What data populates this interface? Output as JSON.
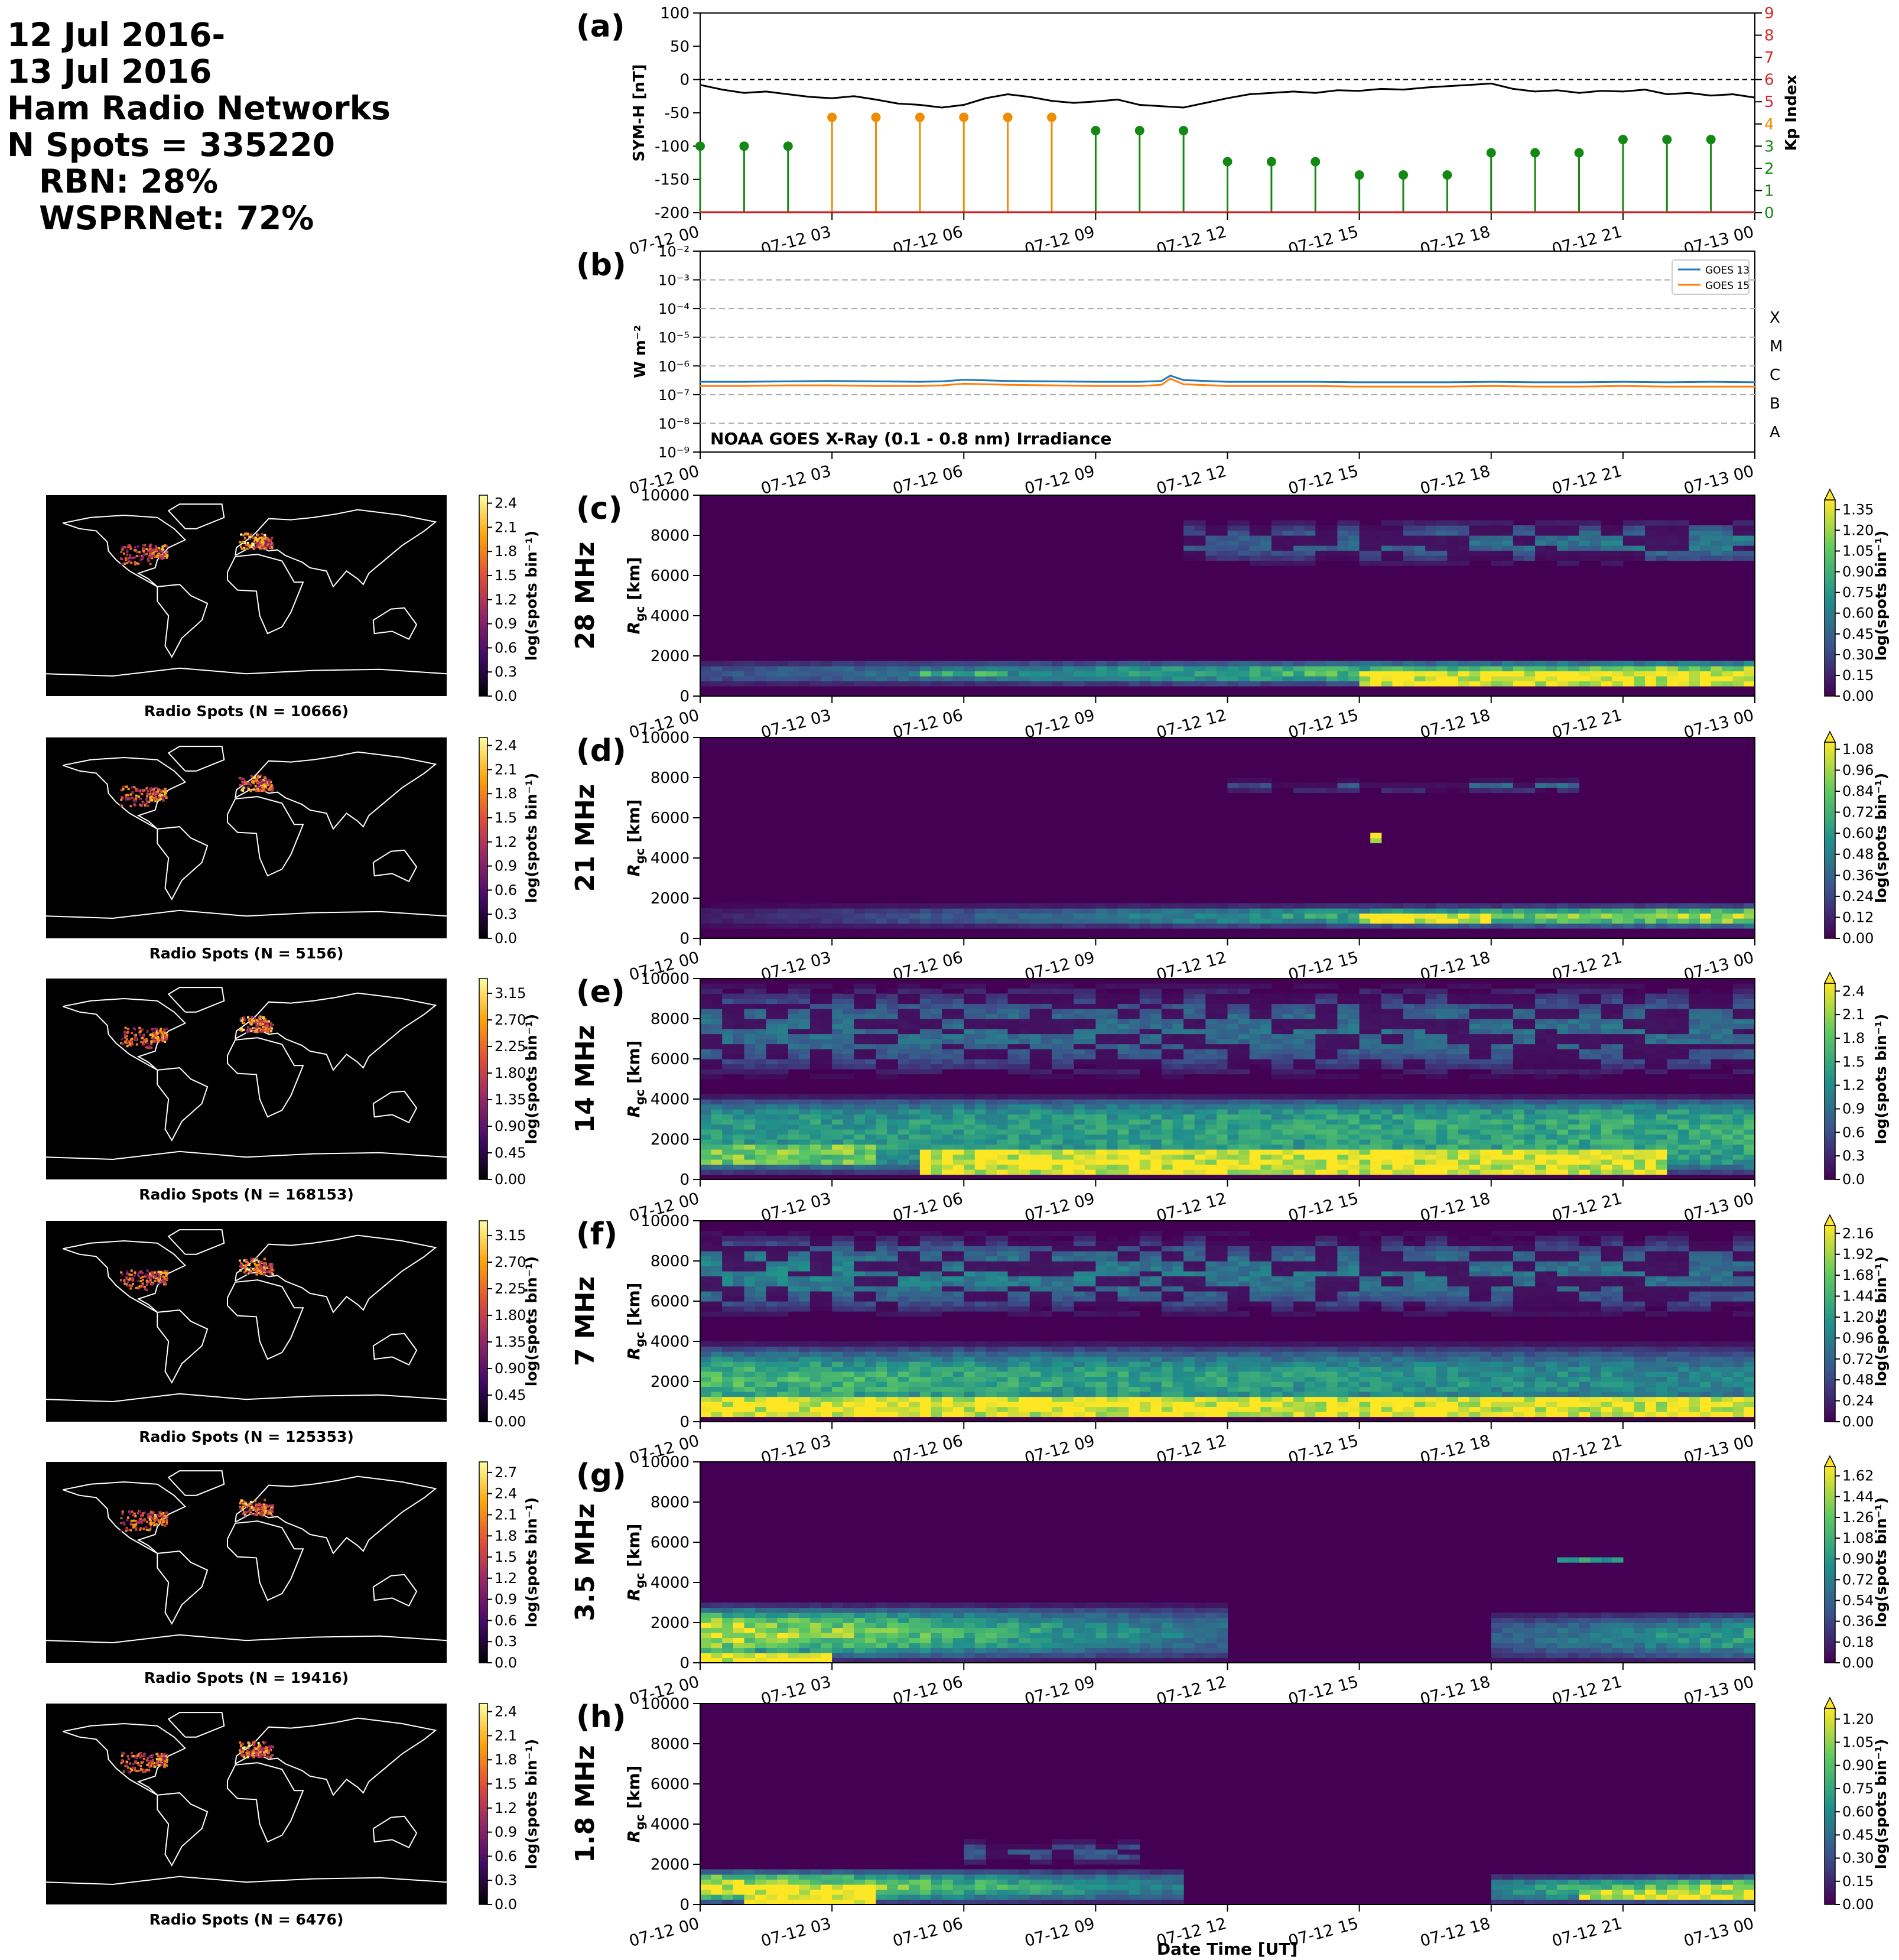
{
  "header": {
    "date_line1": "12 Jul 2016-",
    "date_line2": "13 Jul 2016",
    "network_title": "Ham Radio Networks",
    "n_spots": "N Spots = 335220",
    "rbn": "RBN: 28%",
    "wsprnet": "WSPRNet: 72%"
  },
  "colors": {
    "symh": "#000000",
    "kp_green": "#138813",
    "kp_orange": "#f08c00",
    "kp_red": "#d62728",
    "goes13": "#1f77b4",
    "goes15": "#ff7f0e",
    "viridis": [
      "#440154",
      "#3b528b",
      "#21918c",
      "#5ec962",
      "#fde725"
    ],
    "inferno": [
      "#000004",
      "#420a68",
      "#932667",
      "#dd513a",
      "#fca50a",
      "#fcffa4"
    ]
  },
  "xaxis": {
    "tick_labels": [
      "07-12 00",
      "07-12 03",
      "07-12 06",
      "07-12 09",
      "07-12 12",
      "07-12 15",
      "07-12 18",
      "07-12 21",
      "07-13 00"
    ],
    "xlabel": "Date Time [UT]"
  },
  "chart_data": [
    {
      "panel": "(a)",
      "type": "line",
      "ylabel": "SYM-H [nT]",
      "ylim": [
        -200,
        100
      ],
      "yticks": [
        "100",
        "50",
        "0",
        "-50",
        "-100",
        "-150",
        "-200"
      ],
      "zero_line": "dashed",
      "symh_series": {
        "x_hours": [
          0,
          0.5,
          1,
          1.5,
          2,
          2.5,
          3,
          3.5,
          4,
          4.5,
          5,
          5.5,
          6,
          6.5,
          7,
          7.5,
          8,
          8.5,
          9,
          9.5,
          10,
          10.5,
          11,
          11.5,
          12,
          12.5,
          13,
          13.5,
          14,
          14.5,
          15,
          15.5,
          16,
          16.5,
          17,
          17.5,
          18,
          18.5,
          19,
          19.5,
          20,
          20.5,
          21,
          21.5,
          22,
          22.5,
          23,
          23.5,
          24
        ],
        "values": [
          -8,
          -15,
          -20,
          -18,
          -22,
          -26,
          -28,
          -25,
          -30,
          -36,
          -38,
          -42,
          -38,
          -28,
          -22,
          -26,
          -32,
          -35,
          -33,
          -30,
          -38,
          -40,
          -42,
          -35,
          -28,
          -22,
          -20,
          -18,
          -20,
          -16,
          -17,
          -14,
          -15,
          -12,
          -10,
          -8,
          -6,
          -14,
          -18,
          -16,
          -20,
          -17,
          -18,
          -15,
          -22,
          -20,
          -24,
          -22,
          -27
        ]
      },
      "kp_axis": {
        "ylabel": "Kp Index",
        "ylim": [
          0,
          9
        ],
        "tick_labels": [
          "0",
          "1",
          "2",
          "3",
          "4",
          "5",
          "6",
          "7",
          "8",
          "9"
        ]
      },
      "kp_series": {
        "x_hours": [
          0,
          1,
          2,
          3,
          4,
          5,
          6,
          7,
          8,
          9,
          10,
          11,
          12,
          13,
          14,
          15,
          16,
          17,
          18,
          19,
          20,
          21,
          22,
          23
        ],
        "values": [
          3.0,
          3.0,
          3.0,
          4.3,
          4.3,
          4.3,
          4.3,
          4.3,
          4.3,
          3.7,
          3.7,
          3.7,
          2.3,
          2.3,
          2.3,
          1.7,
          1.7,
          1.7,
          2.7,
          2.7,
          2.7,
          3.3,
          3.3,
          3.3
        ]
      }
    },
    {
      "panel": "(b)",
      "type": "line",
      "ylabel": "W m⁻²",
      "yscale": "log",
      "ylim": [
        1e-09,
        0.01
      ],
      "ytick_labels": [
        "10⁻²",
        "10⁻³",
        "10⁻⁴",
        "10⁻⁵",
        "10⁻⁶",
        "10⁻⁷",
        "10⁻⁸",
        "10⁻⁹"
      ],
      "flare_classes": [
        "X",
        "M",
        "C",
        "B",
        "A"
      ],
      "annotation": "NOAA GOES X-Ray (0.1 - 0.8 nm) Irradiance",
      "series": [
        {
          "name": "GOES 13",
          "x_hours": [
            0,
            1,
            2,
            3,
            4,
            5,
            5.5,
            6,
            7,
            8,
            9,
            10,
            10.5,
            10.7,
            11,
            12,
            13,
            14,
            15,
            16,
            17,
            18,
            19,
            20,
            21,
            22,
            23,
            24
          ],
          "values": [
            2.8e-07,
            2.8e-07,
            2.9e-07,
            3e-07,
            2.9e-07,
            2.8e-07,
            2.9e-07,
            3.3e-07,
            3e-07,
            2.9e-07,
            2.8e-07,
            2.8e-07,
            3e-07,
            4.6e-07,
            3.2e-07,
            2.8e-07,
            2.8e-07,
            2.8e-07,
            2.7e-07,
            2.7e-07,
            2.7e-07,
            2.8e-07,
            2.7e-07,
            2.7e-07,
            2.8e-07,
            2.7e-07,
            2.8e-07,
            2.7e-07
          ]
        },
        {
          "name": "GOES 15",
          "x_hours": [
            0,
            1,
            2,
            3,
            4,
            5,
            5.5,
            6,
            7,
            8,
            9,
            10,
            10.5,
            10.7,
            11,
            12,
            13,
            14,
            15,
            16,
            17,
            18,
            19,
            20,
            21,
            22,
            23,
            24
          ],
          "values": [
            2e-07,
            2e-07,
            2.1e-07,
            2.1e-07,
            2e-07,
            2e-07,
            2.1e-07,
            2.4e-07,
            2.2e-07,
            2.1e-07,
            2e-07,
            2e-07,
            2.2e-07,
            3.6e-07,
            2.3e-07,
            2e-07,
            2e-07,
            2e-07,
            1.9e-07,
            1.9e-07,
            1.9e-07,
            2e-07,
            1.9e-07,
            1.9e-07,
            2e-07,
            1.9e-07,
            1.9e-07,
            1.9e-07
          ]
        }
      ]
    },
    {
      "panel": "(c)",
      "type": "heatmap",
      "band": "28 MHz",
      "map_caption": "Radio Spots (N = 10666)",
      "map_cbar": {
        "ticks": [
          "0.0",
          "0.3",
          "0.6",
          "0.9",
          "1.2",
          "1.5",
          "1.8",
          "2.1",
          "2.4"
        ],
        "max": 2.5
      },
      "ylabel": "R_gc [km]",
      "ylim": [
        0,
        10000
      ],
      "yticks": [
        "0",
        "2000",
        "4000",
        "6000",
        "8000",
        "10000"
      ],
      "cbar": {
        "label": "log(spots bin⁻¹)",
        "ticks": [
          "0.00",
          "0.15",
          "0.30",
          "0.45",
          "0.60",
          "0.75",
          "0.90",
          "1.05",
          "1.20",
          "1.35"
        ],
        "max": 1.42
      },
      "bands_desc": [
        {
          "t0": 0,
          "t1": 24,
          "r0": 500,
          "r1": 1800,
          "shape": "ramp",
          "v0": 0.35,
          "v1": 1.35
        },
        {
          "t0": 11,
          "t1": 24,
          "r0": 6500,
          "r1": 8800,
          "shape": "patchy",
          "v0": 0.4,
          "v1": 0.6
        }
      ],
      "hotspots": [
        [
          15,
          24,
          500,
          1200,
          1.4
        ],
        [
          5,
          7,
          900,
          1200,
          0.9
        ]
      ]
    },
    {
      "panel": "(d)",
      "type": "heatmap",
      "band": "21 MHz",
      "map_caption": "Radio Spots (N = 5156)",
      "map_cbar": {
        "ticks": [
          "0.0",
          "0.3",
          "0.6",
          "0.9",
          "1.2",
          "1.5",
          "1.8",
          "2.1",
          "2.4"
        ],
        "max": 2.5
      },
      "ylabel": "R_gc [km]",
      "ylim": [
        0,
        10000
      ],
      "yticks": [
        "0",
        "2000",
        "4000",
        "6000",
        "8000",
        "10000"
      ],
      "cbar": {
        "label": "log(spots bin⁻¹)",
        "ticks": [
          "0.00",
          "0.12",
          "0.24",
          "0.36",
          "0.48",
          "0.60",
          "0.72",
          "0.84",
          "0.96",
          "1.08"
        ],
        "max": 1.12
      },
      "bands_desc": [
        {
          "t0": 0,
          "t1": 24,
          "r0": 500,
          "r1": 1700,
          "shape": "ramp",
          "v0": 0.1,
          "v1": 1.0
        },
        {
          "t0": 12,
          "t1": 20,
          "r0": 7300,
          "r1": 7900,
          "shape": "patchy",
          "v0": 0.25,
          "v1": 0.4
        }
      ],
      "hotspots": [
        [
          15,
          18,
          700,
          1300,
          1.1
        ],
        [
          15.3,
          15.6,
          4800,
          5300,
          1.0
        ]
      ]
    },
    {
      "panel": "(e)",
      "type": "heatmap",
      "band": "14 MHz",
      "map_caption": "Radio Spots (N = 168153)",
      "map_cbar": {
        "ticks": [
          "0.00",
          "0.45",
          "0.90",
          "1.35",
          "1.80",
          "2.25",
          "2.70",
          "3.15"
        ],
        "max": 3.4
      },
      "ylabel": "R_gc [km]",
      "ylim": [
        0,
        10000
      ],
      "yticks": [
        "0",
        "2000",
        "4000",
        "6000",
        "8000",
        "10000"
      ],
      "cbar": {
        "label": "log(spots bin⁻¹)",
        "ticks": [
          "0.0",
          "0.3",
          "0.6",
          "0.9",
          "1.2",
          "1.5",
          "1.8",
          "2.1",
          "2.4"
        ],
        "max": 2.5
      },
      "bands_desc": [
        {
          "t0": 0,
          "t1": 24,
          "r0": 200,
          "r1": 4200,
          "shape": "broad",
          "v0": 1.3,
          "v1": 1.5
        },
        {
          "t0": 0,
          "t1": 24,
          "r0": 5000,
          "r1": 9800,
          "shape": "patchy",
          "v0": 0.9,
          "v1": 0.9
        }
      ],
      "hotspots": [
        [
          5,
          22,
          300,
          1400,
          2.4
        ],
        [
          0,
          4,
          800,
          1800,
          1.9
        ]
      ]
    },
    {
      "panel": "(f)",
      "type": "heatmap",
      "band": "7 MHz",
      "map_caption": "Radio Spots (N = 125353)",
      "map_cbar": {
        "ticks": [
          "0.00",
          "0.45",
          "0.90",
          "1.35",
          "1.80",
          "2.25",
          "2.70",
          "3.15"
        ],
        "max": 3.4
      },
      "ylabel": "R_gc [km]",
      "ylim": [
        0,
        10000
      ],
      "yticks": [
        "0",
        "2000",
        "4000",
        "6000",
        "8000",
        "10000"
      ],
      "cbar": {
        "label": "log(spots bin⁻¹)",
        "ticks": [
          "0.00",
          "0.24",
          "0.48",
          "0.72",
          "0.96",
          "1.20",
          "1.44",
          "1.68",
          "1.92",
          "2.16"
        ],
        "max": 2.25
      },
      "bands_desc": [
        {
          "t0": 0,
          "t1": 24,
          "r0": 100,
          "r1": 4000,
          "shape": "decay",
          "v0": 1.5,
          "v1": 1.0
        },
        {
          "t0": 0,
          "t1": 24,
          "r0": 5200,
          "r1": 9500,
          "shape": "patchy",
          "v0": 1.0,
          "v1": 0.8
        }
      ],
      "hotspots": [
        [
          0,
          24,
          200,
          1200,
          2.2
        ]
      ]
    },
    {
      "panel": "(g)",
      "type": "heatmap",
      "band": "3.5 MHz",
      "map_caption": "Radio Spots (N = 19416)",
      "map_cbar": {
        "ticks": [
          "0.0",
          "0.3",
          "0.6",
          "0.9",
          "1.2",
          "1.5",
          "1.8",
          "2.1",
          "2.4",
          "2.7"
        ],
        "max": 2.85
      },
      "ylabel": "R_gc [km]",
      "ylim": [
        0,
        10000
      ],
      "yticks": [
        "0",
        "2000",
        "4000",
        "6000",
        "8000",
        "10000"
      ],
      "cbar": {
        "label": "log(spots bin⁻¹)",
        "ticks": [
          "0.00",
          "0.18",
          "0.36",
          "0.54",
          "0.72",
          "0.90",
          "1.08",
          "1.26",
          "1.44",
          "1.62"
        ],
        "max": 1.7
      },
      "bands_desc": [
        {
          "t0": 0,
          "t1": 12,
          "r0": 0,
          "r1": 3000,
          "shape": "decay",
          "v0": 1.6,
          "v1": 0.6
        },
        {
          "t0": 18,
          "t1": 24,
          "r0": 0,
          "r1": 2600,
          "shape": "ramp",
          "v0": 0.5,
          "v1": 1.0
        }
      ],
      "hotspots": [
        [
          0,
          3,
          0,
          500,
          1.7
        ],
        [
          19.5,
          21,
          5000,
          5300,
          0.9
        ]
      ]
    },
    {
      "panel": "(h)",
      "type": "heatmap",
      "band": "1.8 MHz",
      "map_caption": "Radio Spots (N = 6476)",
      "map_cbar": {
        "ticks": [
          "0.0",
          "0.3",
          "0.6",
          "0.9",
          "1.2",
          "1.5",
          "1.8",
          "2.1",
          "2.4"
        ],
        "max": 2.5
      },
      "ylabel": "R_gc [km]",
      "ylim": [
        0,
        10000
      ],
      "yticks": [
        "0",
        "2000",
        "4000",
        "6000",
        "8000",
        "10000"
      ],
      "cbar": {
        "label": "log(spots bin⁻¹)",
        "ticks": [
          "0.00",
          "0.15",
          "0.30",
          "0.45",
          "0.60",
          "0.75",
          "0.90",
          "1.05",
          "1.20"
        ],
        "max": 1.27
      },
      "bands_desc": [
        {
          "t0": 0,
          "t1": 11,
          "r0": 0,
          "r1": 1800,
          "shape": "decay",
          "v0": 1.25,
          "v1": 0.5
        },
        {
          "t0": 6,
          "t1": 10,
          "r0": 2000,
          "r1": 3200,
          "shape": "patchy",
          "v0": 0.35,
          "v1": 0.35
        },
        {
          "t0": 18,
          "t1": 24,
          "r0": 0,
          "r1": 1500,
          "shape": "ramp",
          "v0": 0.6,
          "v1": 1.2
        }
      ],
      "hotspots": [
        [
          1,
          4,
          0,
          1000,
          1.3
        ],
        [
          20,
          24,
          200,
          800,
          1.2
        ]
      ]
    }
  ]
}
